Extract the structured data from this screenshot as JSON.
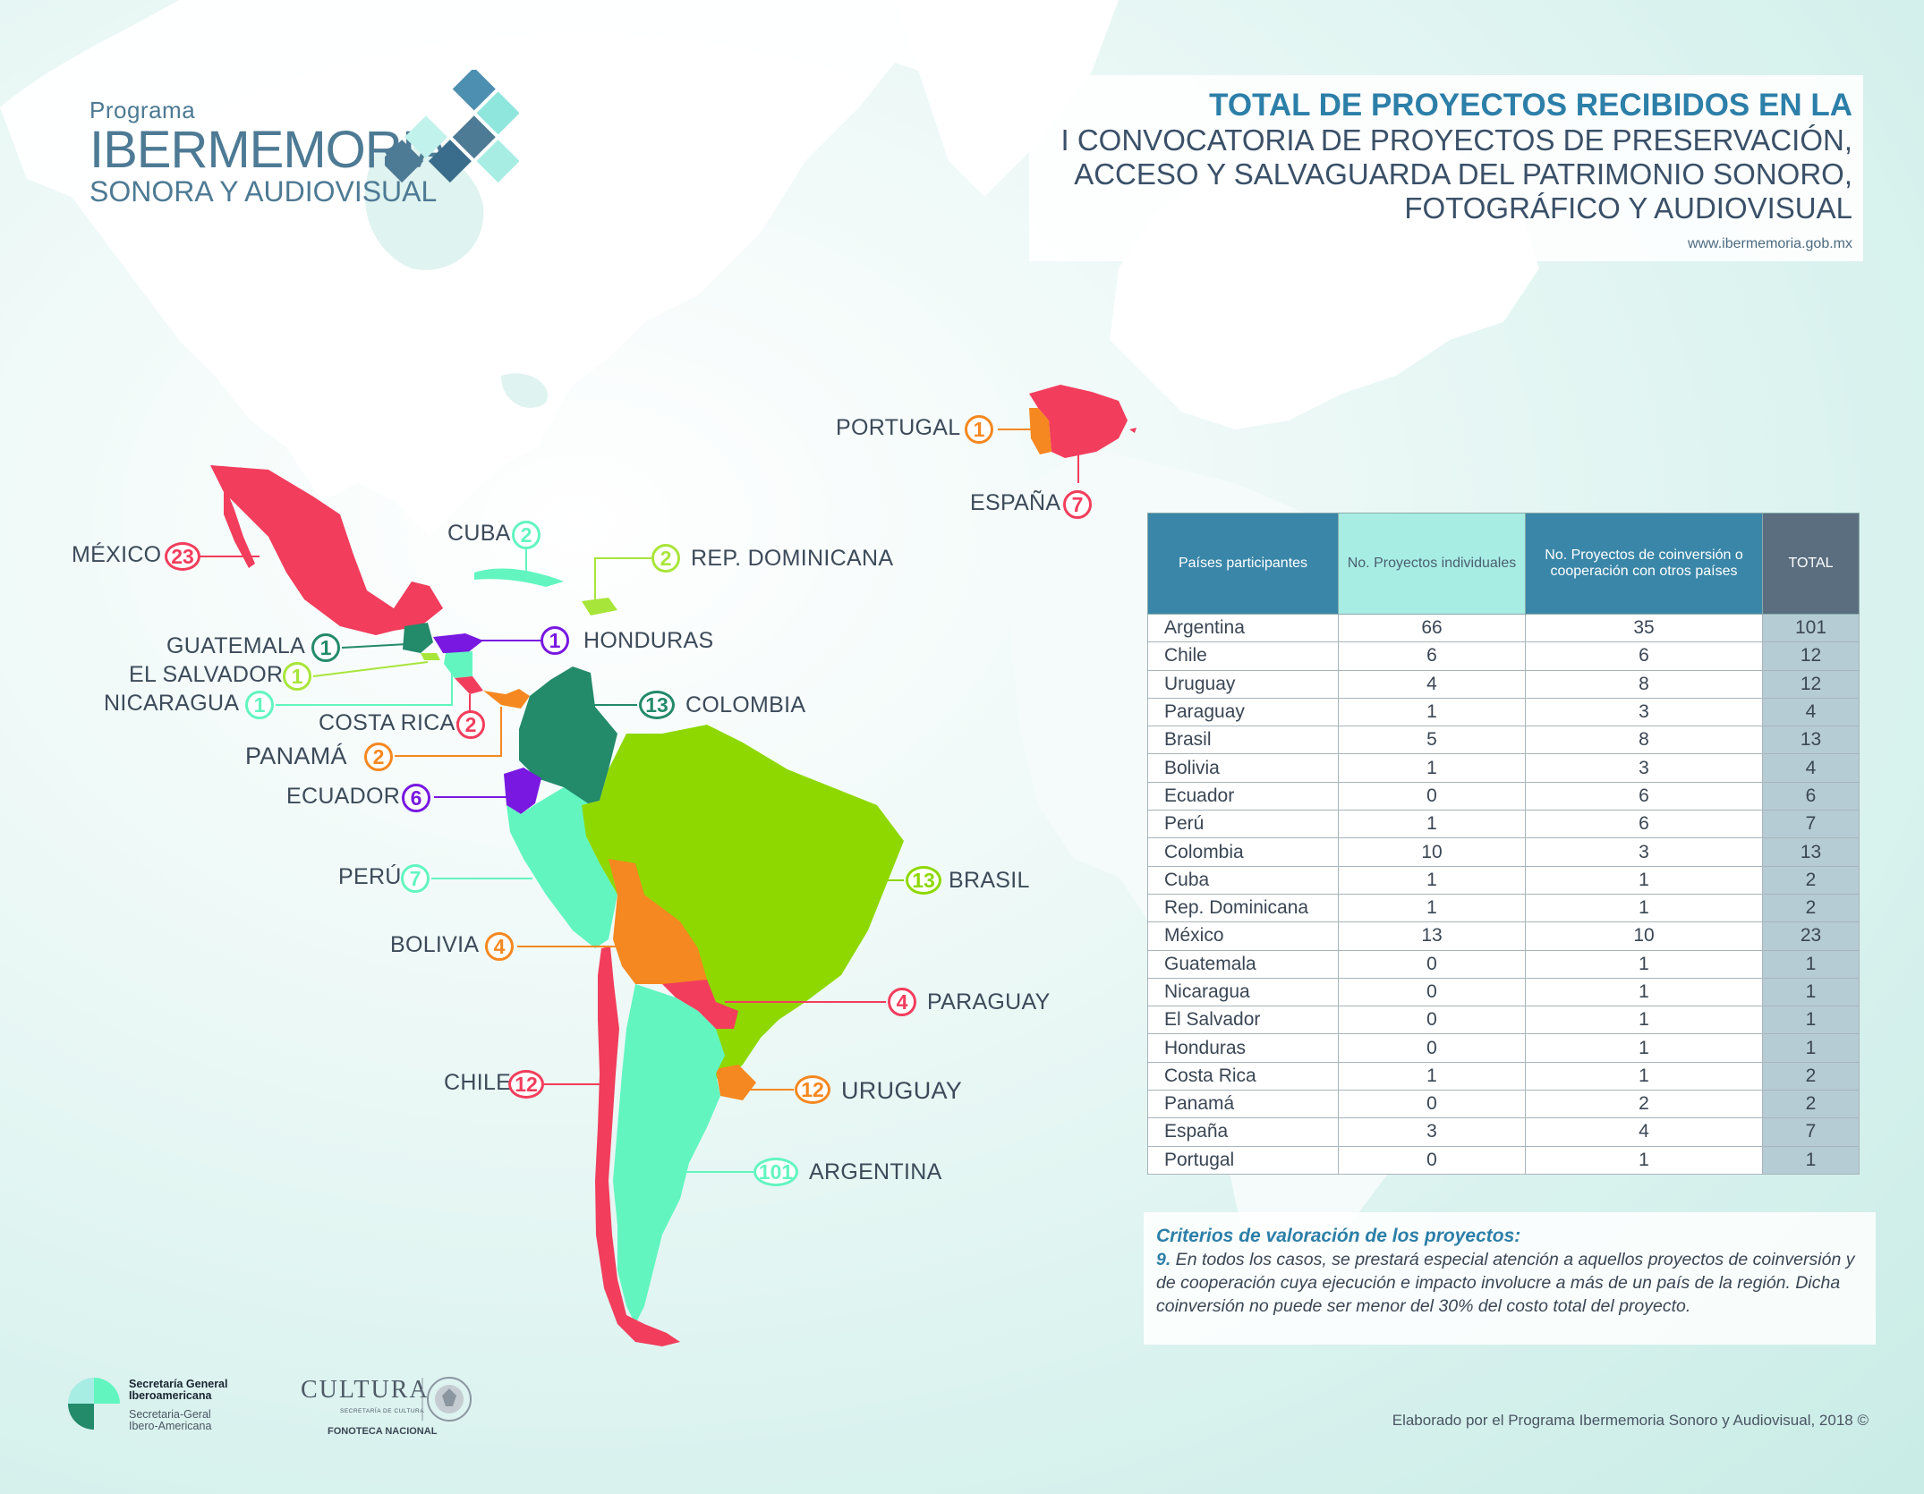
{
  "logo": {
    "line1": "Programa",
    "line2": "IBERMEMORIA",
    "line3": "SONORA Y AUDIOVISUAL"
  },
  "title": {
    "line1": "TOTAL DE PROYECTOS RECIBIDOS EN LA",
    "line2": "I CONVOCATORIA DE PROYECTOS DE PRESERVACIÓN,",
    "line3": "ACCESO Y SALVAGUARDA DEL PATRIMONIO SONORO,",
    "line4": "FOTOGRÁFICO Y AUDIOVISUAL",
    "url": "www.ibermemoria.gob.mx"
  },
  "colors": {
    "red": "#f23d5c",
    "green": "#8ed800",
    "lightgreen": "#a8e53a",
    "aqua": "#62f5c0",
    "darkgreen": "#238a6a",
    "orange": "#f58820",
    "purple": "#7818e0",
    "teal": "#238a6a"
  },
  "map_labels": {
    "portugal": {
      "name": "PORTUGAL",
      "value": "1"
    },
    "espana": {
      "name": "ESPAÑA",
      "value": "7"
    },
    "mexico": {
      "name": "MÉXICO",
      "value": "23"
    },
    "cuba": {
      "name": "CUBA",
      "value": "2"
    },
    "repdom": {
      "name": "REP. DOMINICANA",
      "value": "2"
    },
    "guatemala": {
      "name": "GUATEMALA",
      "value": "1"
    },
    "elsalvador": {
      "name": "EL SALVADOR",
      "value": "1"
    },
    "nicaragua": {
      "name": "NICARAGUA",
      "value": "1"
    },
    "honduras": {
      "name": "HONDURAS",
      "value": "1"
    },
    "costarica": {
      "name": "COSTA RICA",
      "value": "2"
    },
    "panama": {
      "name": "PANAMÁ",
      "value": "2"
    },
    "colombia": {
      "name": "COLOMBIA",
      "value": "13"
    },
    "ecuador": {
      "name": "ECUADOR",
      "value": "6"
    },
    "peru": {
      "name": "PERÚ",
      "value": "7"
    },
    "brasil": {
      "name": "BRASIL",
      "value": "13"
    },
    "bolivia": {
      "name": "BOLIVIA",
      "value": "4"
    },
    "paraguay": {
      "name": "PARAGUAY",
      "value": "4"
    },
    "chile": {
      "name": "CHILE",
      "value": "12"
    },
    "uruguay": {
      "name": "URUGUAY",
      "value": "12"
    },
    "argentina": {
      "name": "ARGENTINA",
      "value": "101"
    }
  },
  "table": {
    "headers": [
      "Países participantes",
      "No. Proyectos individuales",
      "No. Proyectos de coinversión o cooperación con otros países",
      "TOTAL"
    ],
    "rows": [
      [
        "Argentina",
        "66",
        "35",
        "101"
      ],
      [
        "Chile",
        "6",
        "6",
        "12"
      ],
      [
        "Uruguay",
        "4",
        "8",
        "12"
      ],
      [
        "Paraguay",
        "1",
        "3",
        "4"
      ],
      [
        "Brasil",
        "5",
        "8",
        "13"
      ],
      [
        "Bolivia",
        "1",
        "3",
        "4"
      ],
      [
        "Ecuador",
        "0",
        "6",
        "6"
      ],
      [
        "Perú",
        "1",
        "6",
        "7"
      ],
      [
        "Colombia",
        "10",
        "3",
        "13"
      ],
      [
        "Cuba",
        "1",
        "1",
        "2"
      ],
      [
        "Rep. Dominicana",
        "1",
        "1",
        "2"
      ],
      [
        "México",
        "13",
        "10",
        "23"
      ],
      [
        "Guatemala",
        "0",
        "1",
        "1"
      ],
      [
        "Nicaragua",
        "0",
        "1",
        "1"
      ],
      [
        "El Salvador",
        "0",
        "1",
        "1"
      ],
      [
        "Honduras",
        "0",
        "1",
        "1"
      ],
      [
        "Costa Rica",
        "1",
        "1",
        "2"
      ],
      [
        "Panamá",
        "0",
        "2",
        "2"
      ],
      [
        "España",
        "3",
        "4",
        "7"
      ],
      [
        "Portugal",
        "0",
        "1",
        "1"
      ]
    ]
  },
  "criteria": {
    "title": "Criterios de valoración de los proyectos:",
    "number": "9.",
    "text": " En todos los casos, se prestará especial atención a aquellos proyectos de coinversión y de cooperación cuya ejecución e impacto involucre a más de un país de la región. Dicha coinversión no puede ser menor del 30% del costo total del proyecto."
  },
  "footer": "Elaborado por el Programa Ibermemoria Sonoro y Audiovisual, 2018 ©",
  "logos": {
    "segib_line1": "Secretaría General",
    "segib_line2": "Iberoamericana",
    "segib_line3": "Secretaria-Geral",
    "segib_line4": "Ibero-Americana",
    "cultura": "CULTURA",
    "cultura_sub": "SECRETARÍA DE CULTURA",
    "fonoteca": "FONOTECA NACIONAL"
  }
}
